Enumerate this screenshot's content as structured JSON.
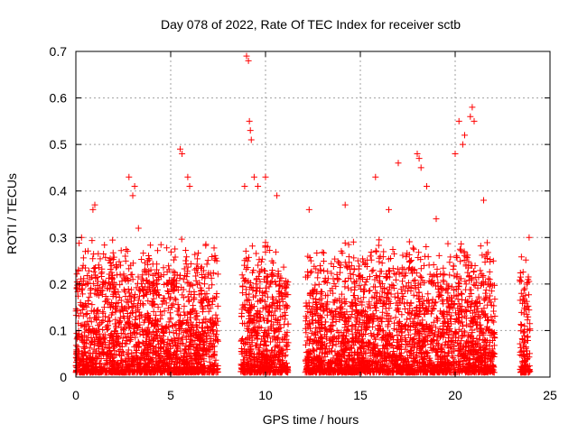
{
  "chart_data": {
    "type": "scatter",
    "title": "Day 078 of 2022, Rate Of TEC Index for receiver sctb",
    "xlabel": "GPS time / hours",
    "ylabel": "ROTI / TECUs",
    "xlim": [
      0,
      25
    ],
    "ylim": [
      0,
      0.7
    ],
    "xticks": [
      "0",
      "5",
      "10",
      "15",
      "20",
      "25"
    ],
    "yticks": [
      "0",
      "0.1",
      "0.2",
      "0.3",
      "0.4",
      "0.5",
      "0.6",
      "0.7"
    ],
    "grid": true,
    "legend": "none",
    "marker": "plus",
    "color": "#ff0000",
    "series": [
      {
        "observation_windows_hours": [
          [
            0.0,
            7.5
          ],
          [
            8.7,
            11.2
          ],
          [
            12.1,
            22.1
          ],
          [
            23.4,
            23.95
          ]
        ],
        "typical_range": [
          0.01,
          0.3
        ],
        "x": [
          0.05,
          0.3,
          0.5,
          0.9,
          1.0,
          2.8,
          3.0,
          3.1,
          3.3,
          5.5,
          5.6,
          5.9,
          6.0,
          8.9,
          9.0,
          9.1,
          9.15,
          9.2,
          9.25,
          9.4,
          9.6,
          10.0,
          10.6,
          12.3,
          14.2,
          15.8,
          16.5,
          17.0,
          18.0,
          18.1,
          18.2,
          18.5,
          19.0,
          20.0,
          20.2,
          20.4,
          20.5,
          20.8,
          20.9,
          21.0,
          21.5,
          23.9
        ],
        "y": [
          0.19,
          0.3,
          0.27,
          0.36,
          0.37,
          0.43,
          0.39,
          0.41,
          0.32,
          0.49,
          0.48,
          0.43,
          0.41,
          0.41,
          0.69,
          0.68,
          0.55,
          0.53,
          0.51,
          0.43,
          0.41,
          0.43,
          0.39,
          0.36,
          0.37,
          0.43,
          0.36,
          0.46,
          0.48,
          0.47,
          0.45,
          0.41,
          0.34,
          0.48,
          0.55,
          0.5,
          0.52,
          0.56,
          0.58,
          0.55,
          0.38,
          0.3
        ]
      }
    ]
  }
}
